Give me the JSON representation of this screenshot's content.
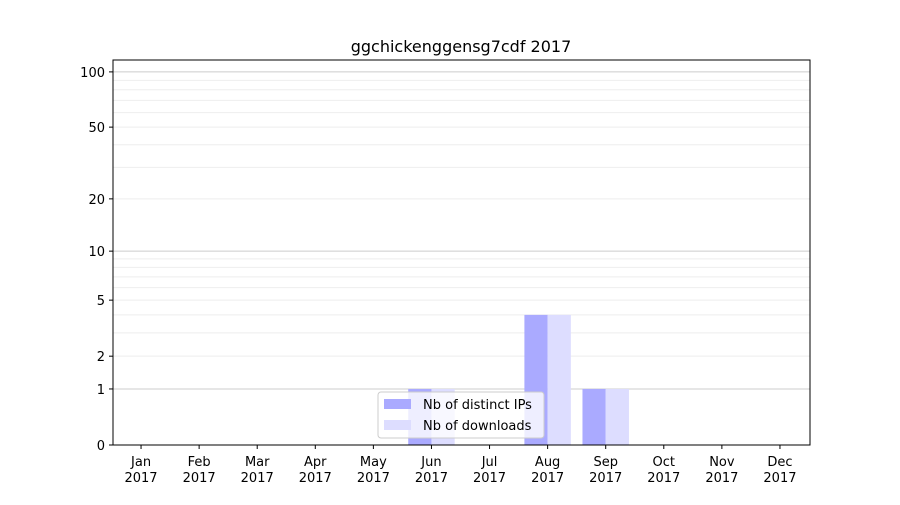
{
  "chart_data": {
    "type": "bar",
    "title": "ggchickenggensg7cdf 2017",
    "xlabel": "",
    "ylabel": "",
    "yscale": "symlog",
    "ylim": [
      0,
      116
    ],
    "grid": true,
    "legend_position": "lower-center",
    "categories": [
      "Jan\n2017",
      "Feb\n2017",
      "Mar\n2017",
      "Apr\n2017",
      "May\n2017",
      "Jun\n2017",
      "Jul\n2017",
      "Aug\n2017",
      "Sep\n2017",
      "Oct\n2017",
      "Nov\n2017",
      "Dec\n2017"
    ],
    "yticks": [
      0,
      1,
      2,
      5,
      10,
      20,
      50,
      100
    ],
    "series": [
      {
        "name": "Nb of distinct IPs",
        "color": "#aaaaff",
        "values": [
          0,
          0,
          0,
          0,
          0,
          1,
          0,
          4,
          1,
          0,
          0,
          0
        ]
      },
      {
        "name": "Nb of downloads",
        "color": "#ddddff",
        "values": [
          0,
          0,
          0,
          0,
          0,
          1,
          0,
          4,
          1,
          0,
          0,
          0
        ]
      }
    ]
  }
}
